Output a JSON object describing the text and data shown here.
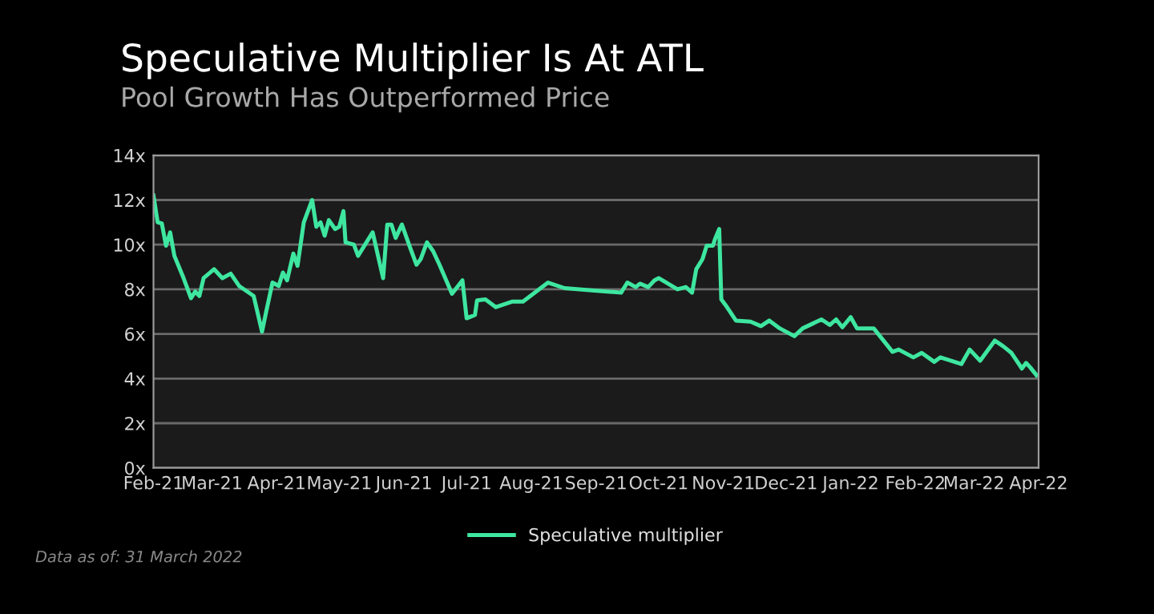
{
  "chart_data": {
    "type": "line",
    "title": "Speculative Multiplier Is At ATL",
    "subtitle": "Pool Growth Has Outperformed Price",
    "annotations": [
      "Data as of: 31 March 2022"
    ],
    "x": [
      "2021-02-01",
      "2021-02-03",
      "2021-02-05",
      "2021-02-07",
      "2021-02-09",
      "2021-02-11",
      "2021-02-15",
      "2021-02-19",
      "2021-02-21",
      "2021-02-23",
      "2021-02-25",
      "2021-03-02",
      "2021-03-06",
      "2021-03-10",
      "2021-03-14",
      "2021-03-21",
      "2021-03-25",
      "2021-03-27",
      "2021-03-30",
      "2021-04-02",
      "2021-04-04",
      "2021-04-06",
      "2021-04-09",
      "2021-04-11",
      "2021-04-14",
      "2021-04-18",
      "2021-04-20",
      "2021-04-22",
      "2021-04-24",
      "2021-04-26",
      "2021-04-29",
      "2021-05-01",
      "2021-05-03",
      "2021-05-04",
      "2021-05-08",
      "2021-05-10",
      "2021-05-17",
      "2021-05-22",
      "2021-05-24",
      "2021-05-26",
      "2021-05-28",
      "2021-05-31",
      "2021-06-04",
      "2021-06-07",
      "2021-06-09",
      "2021-06-12",
      "2021-06-15",
      "2021-06-18",
      "2021-06-24",
      "2021-06-29",
      "2021-07-01",
      "2021-07-05",
      "2021-07-06",
      "2021-07-10",
      "2021-07-15",
      "2021-07-23",
      "2021-07-28",
      "2021-08-09",
      "2021-08-17",
      "2021-08-30",
      "2021-09-13",
      "2021-09-16",
      "2021-09-20",
      "2021-09-22",
      "2021-09-26",
      "2021-09-29",
      "2021-10-01",
      "2021-10-10",
      "2021-10-14",
      "2021-10-17",
      "2021-10-19",
      "2021-10-22",
      "2021-10-24",
      "2021-10-27",
      "2021-10-28",
      "2021-10-30",
      "2021-10-31",
      "2021-11-02",
      "2021-11-07",
      "2021-11-14",
      "2021-11-19",
      "2021-11-23",
      "2021-11-28",
      "2021-12-05",
      "2021-12-09",
      "2021-12-18",
      "2021-12-22",
      "2021-12-25",
      "2021-12-28",
      "2022-01-01",
      "2022-01-04",
      "2022-01-12",
      "2022-01-21",
      "2022-01-24",
      "2022-01-31",
      "2022-02-04",
      "2022-02-10",
      "2022-02-13",
      "2022-02-23",
      "2022-02-27",
      "2022-03-04",
      "2022-03-11",
      "2022-03-15",
      "2022-03-19",
      "2022-03-24",
      "2022-03-26",
      "2022-03-28",
      "2022-03-31"
    ],
    "series": [
      {
        "name": "Speculative multiplier",
        "color": "#3ee6a0",
        "values": [
          12.2,
          11.0,
          10.95,
          9.95,
          10.55,
          9.5,
          8.6,
          7.6,
          7.9,
          7.7,
          8.5,
          8.9,
          8.5,
          8.7,
          8.15,
          7.7,
          6.1,
          7.0,
          8.3,
          8.15,
          8.75,
          8.4,
          9.6,
          9.05,
          11.0,
          12.0,
          10.8,
          11.0,
          10.4,
          11.1,
          10.7,
          10.8,
          11.5,
          10.1,
          10.0,
          9.5,
          10.55,
          8.5,
          10.9,
          10.9,
          10.3,
          10.9,
          9.85,
          9.1,
          9.35,
          10.1,
          9.7,
          9.1,
          7.8,
          8.4,
          6.7,
          6.85,
          7.5,
          7.55,
          7.2,
          7.45,
          7.45,
          8.3,
          8.05,
          7.95,
          7.85,
          8.3,
          8.1,
          8.25,
          8.1,
          8.4,
          8.5,
          8.0,
          8.1,
          7.85,
          8.9,
          9.35,
          9.95,
          9.95,
          10.25,
          10.7,
          7.55,
          7.3,
          6.6,
          6.55,
          6.35,
          6.6,
          6.25,
          5.9,
          6.25,
          6.65,
          6.4,
          6.65,
          6.3,
          6.75,
          6.25,
          6.25,
          5.2,
          5.3,
          4.95,
          5.15,
          4.75,
          4.95,
          4.65,
          5.3,
          4.8,
          5.7,
          5.45,
          5.15,
          4.45,
          4.7,
          4.5,
          4.15
        ]
      }
    ],
    "xlim": [
      "2021-02-01",
      "2022-04-01"
    ],
    "xticks": [
      {
        "value": "2021-02-01",
        "label": "Feb-21"
      },
      {
        "value": "2021-03-01",
        "label": "Mar-21"
      },
      {
        "value": "2021-04-01",
        "label": "Apr-21"
      },
      {
        "value": "2021-05-01",
        "label": "May-21"
      },
      {
        "value": "2021-06-01",
        "label": "Jun-21"
      },
      {
        "value": "2021-07-01",
        "label": "Jul-21"
      },
      {
        "value": "2021-08-01",
        "label": "Aug-21"
      },
      {
        "value": "2021-09-01",
        "label": "Sep-21"
      },
      {
        "value": "2021-10-01",
        "label": "Oct-21"
      },
      {
        "value": "2021-11-01",
        "label": "Nov-21"
      },
      {
        "value": "2021-12-01",
        "label": "Dec-21"
      },
      {
        "value": "2022-01-01",
        "label": "Jan-22"
      },
      {
        "value": "2022-02-01",
        "label": "Feb-22"
      },
      {
        "value": "2022-03-01",
        "label": "Mar-22"
      },
      {
        "value": "2022-04-01",
        "label": "Apr-22"
      }
    ],
    "ylim": [
      0,
      14
    ],
    "yticks": [
      {
        "value": 0,
        "label": "0x"
      },
      {
        "value": 2,
        "label": "2x"
      },
      {
        "value": 4,
        "label": "4x"
      },
      {
        "value": 6,
        "label": "6x"
      },
      {
        "value": 8,
        "label": "8x"
      },
      {
        "value": 10,
        "label": "10x"
      },
      {
        "value": 12,
        "label": "12x"
      },
      {
        "value": 14,
        "label": "14x"
      }
    ],
    "grid": "y",
    "legend": "bottom",
    "marker": "none",
    "line_style": "solid"
  }
}
